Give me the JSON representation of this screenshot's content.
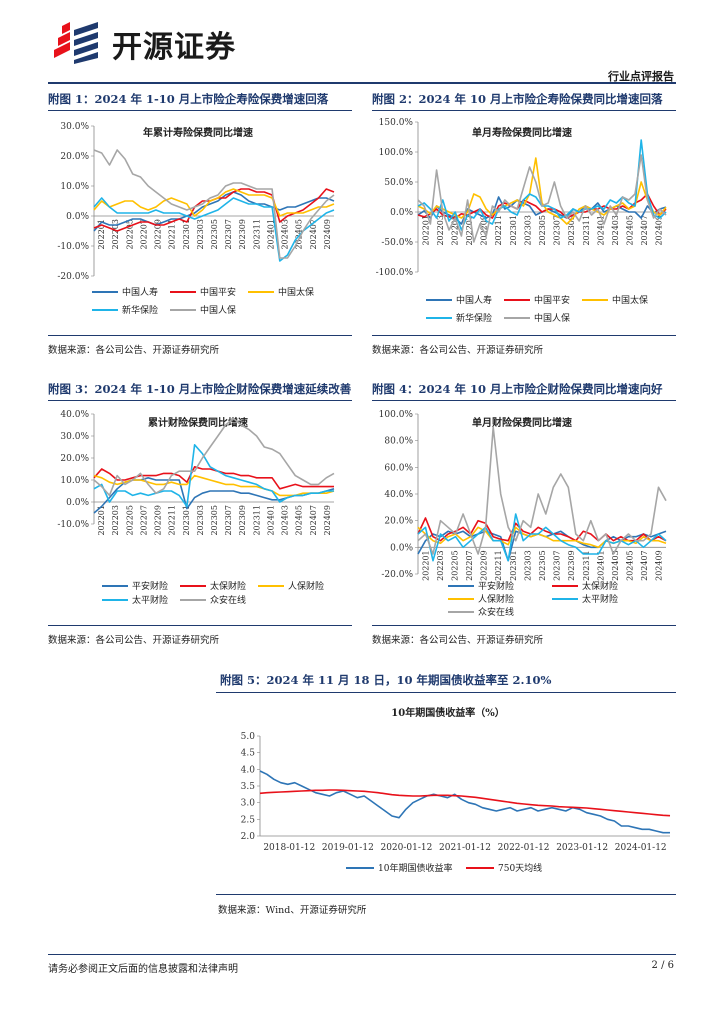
{
  "header": {
    "brand": "开源证券",
    "section": "行业点评报告"
  },
  "colors": {
    "rule": "#1f3a6e",
    "blue": "#2e75b6",
    "red": "#e8111a",
    "yellow": "#ffc000",
    "lightblue": "#1fb4e8",
    "gray": "#a6a6a6",
    "logo_red": "#e8111a",
    "logo_blue": "#1f3a6e"
  },
  "figures": [
    {
      "title": "附图 1：2024 年 1-10 月上市险企寿险保费增速回落",
      "source": "数据来源：各公司公告、开源证券研究所"
    },
    {
      "title": "附图 2：2024 年 10 月上市险企寿险保费同比增速回落",
      "source": "数据来源：各公司公告、开源证券研究所"
    },
    {
      "title": "附图 3：2024 年 1-10 月上市险企财险保费增速延续改善",
      "source": "数据来源：各公司公告、开源证券研究所"
    },
    {
      "title": "附图 4：2024 年 10 月上市险企财险保费同比增速向好",
      "source": "数据来源：各公司公告、开源证券研究所"
    },
    {
      "title": "附图 5：2024 年 11 月 18 日，10 年期国债收益率至 2.10%",
      "source": "数据来源：Wind、开源证券研究所"
    }
  ],
  "footer": {
    "disclaimer": "请务必参阅正文后面的信息披露和法律声明",
    "page": "2 / 6"
  },
  "chart_data": [
    {
      "type": "line",
      "title": "年累计寿险保费同比增速",
      "yticks": [
        "30.0%",
        "20.0%",
        "10.0%",
        "0.0%",
        "-10.0%",
        "-20.0%"
      ],
      "ylim": [
        -20,
        30
      ],
      "xticks": [
        "202201",
        "202203",
        "202205",
        "202207",
        "202209",
        "202211",
        "202301",
        "202303",
        "202305",
        "202307",
        "202309",
        "202311",
        "202401",
        "202403",
        "202405",
        "202407",
        "202409"
      ],
      "legend": [
        "中国人寿",
        "中国平安",
        "中国太保",
        "新华保险",
        "中国人保"
      ],
      "series": [
        {
          "name": "中国人寿",
          "color": "blue",
          "values": [
            -5,
            -2,
            -3,
            -3,
            -2,
            -1,
            -1,
            -2,
            -3,
            -2,
            -1,
            -1,
            0,
            1,
            3,
            4,
            5,
            7,
            8,
            7,
            5,
            4,
            4,
            3,
            2,
            3,
            3,
            4,
            5,
            6,
            6,
            5
          ]
        },
        {
          "name": "中国平安",
          "color": "red",
          "values": [
            -4,
            -3,
            -4,
            -5,
            -4,
            -3,
            -2,
            -2,
            -3,
            -3,
            -2,
            -1,
            -2,
            3,
            5,
            5,
            6,
            6,
            8,
            9,
            9,
            8,
            8,
            7,
            -2,
            0,
            1,
            2,
            4,
            6,
            9,
            8
          ]
        },
        {
          "name": "中国太保",
          "color": "yellow",
          "values": [
            2,
            5,
            3,
            4,
            5,
            5,
            3,
            2,
            3,
            5,
            6,
            5,
            4,
            0,
            2,
            5,
            6,
            8,
            9,
            8,
            7,
            7,
            7,
            6,
            0,
            1,
            1,
            1,
            2,
            3,
            3,
            4
          ]
        },
        {
          "name": "新华保险",
          "color": "lightblue",
          "values": [
            3,
            6,
            3,
            1,
            1,
            1,
            1,
            1,
            2,
            1,
            1,
            1,
            0,
            -1,
            0,
            1,
            2,
            4,
            6,
            5,
            4,
            4,
            3,
            3,
            -15,
            -13,
            -8,
            -5,
            -3,
            -1,
            1,
            2
          ]
        },
        {
          "name": "中国人保",
          "color": "gray",
          "values": [
            22,
            21,
            17,
            22,
            19,
            14,
            13,
            10,
            8,
            6,
            4,
            3,
            2,
            3,
            4,
            6,
            7,
            10,
            11,
            11,
            10,
            9,
            9,
            9,
            -14,
            -14,
            -10,
            -5,
            -1,
            2,
            5,
            7
          ]
        }
      ]
    },
    {
      "type": "line",
      "title": "单月寿险保费同比增速",
      "yticks": [
        "150.0%",
        "100.0%",
        "50.0%",
        "0.0%",
        "-50.0%",
        "-100.0%"
      ],
      "ylim": [
        -100,
        150
      ],
      "xticks": [
        "202201",
        "202203",
        "202205",
        "202207",
        "202209",
        "202211",
        "202301",
        "202303",
        "202305",
        "202307",
        "202309",
        "202311",
        "202401",
        "202403",
        "202405",
        "202407",
        "202409"
      ],
      "legend": [
        "中国人寿",
        "中国平安",
        "中国太保",
        "新华保险",
        "中国人保"
      ],
      "series": [
        {
          "name": "中国人寿",
          "color": "blue",
          "values": [
            -5,
            2,
            -10,
            10,
            0,
            -5,
            -10,
            -20,
            5,
            0,
            -5,
            -10,
            -5,
            25,
            5,
            10,
            20,
            15,
            10,
            -5,
            0,
            5,
            0,
            -5,
            -10,
            5,
            0,
            10,
            5,
            15,
            0,
            5,
            10,
            5,
            0,
            0,
            -10,
            10,
            -2,
            5,
            8
          ]
        },
        {
          "name": "中国平安",
          "color": "red",
          "values": [
            -5,
            -8,
            -3,
            5,
            -5,
            -8,
            -10,
            -3,
            -5,
            0,
            5,
            -5,
            -10,
            10,
            15,
            10,
            5,
            20,
            15,
            10,
            0,
            5,
            5,
            0,
            -10,
            -5,
            0,
            0,
            5,
            5,
            10,
            5,
            5,
            10,
            5,
            15,
            20,
            30,
            10,
            -5,
            5
          ]
        },
        {
          "name": "中国太保",
          "color": "yellow",
          "values": [
            10,
            5,
            -3,
            10,
            5,
            0,
            -5,
            -10,
            0,
            30,
            25,
            5,
            -5,
            5,
            10,
            15,
            20,
            10,
            30,
            90,
            15,
            0,
            -5,
            -10,
            -20,
            -10,
            5,
            10,
            5,
            0,
            -5,
            5,
            10,
            15,
            5,
            10,
            50,
            20,
            0,
            -5,
            8
          ]
        },
        {
          "name": "新华保险",
          "color": "lightblue",
          "values": [
            10,
            15,
            5,
            -10,
            20,
            -15,
            0,
            -30,
            -5,
            -10,
            5,
            -15,
            -20,
            5,
            10,
            0,
            -5,
            20,
            30,
            25,
            10,
            10,
            5,
            -10,
            -5,
            5,
            0,
            5,
            5,
            10,
            5,
            20,
            15,
            25,
            15,
            10,
            120,
            30,
            -5,
            -10,
            0
          ]
        },
        {
          "name": "中国人保",
          "color": "gray",
          "values": [
            20,
            10,
            -20,
            70,
            0,
            -30,
            -10,
            -40,
            20,
            -50,
            -20,
            -40,
            10,
            0,
            20,
            10,
            5,
            40,
            75,
            50,
            10,
            15,
            50,
            10,
            -10,
            0,
            -15,
            10,
            -5,
            5,
            -20,
            10,
            -5,
            25,
            20,
            30,
            95,
            20,
            -10,
            5,
            -5
          ]
        }
      ]
    },
    {
      "type": "line",
      "title": "累计财险保费同比增速",
      "yticks": [
        "40.0%",
        "30.0%",
        "20.0%",
        "10.0%",
        "0.0%",
        "-10.0%"
      ],
      "ylim": [
        -10,
        40
      ],
      "xticks": [
        "202201",
        "202203",
        "202205",
        "202207",
        "202209",
        "202211",
        "202301",
        "202303",
        "202305",
        "202307",
        "202309",
        "202311",
        "202401",
        "202403",
        "202405",
        "202407",
        "202409"
      ],
      "legend": [
        "平安财险",
        "太保财险",
        "人保财险",
        "太平财险",
        "众安在线"
      ],
      "series": [
        {
          "name": "平安财险",
          "color": "blue",
          "values": [
            -5,
            -2,
            2,
            6,
            9,
            10,
            10,
            11,
            10,
            10,
            10,
            10,
            -3,
            2,
            4,
            5,
            5,
            5,
            5,
            4,
            4,
            3,
            2,
            1,
            1,
            2,
            3,
            3,
            4,
            4,
            5,
            6
          ]
        },
        {
          "name": "太保财险",
          "color": "red",
          "values": [
            11,
            15,
            13,
            10,
            10,
            11,
            12,
            12,
            12,
            13,
            13,
            12,
            9,
            16,
            15,
            15,
            14,
            13,
            13,
            12,
            12,
            11,
            11,
            11,
            6,
            7,
            8,
            7,
            7,
            7,
            7,
            7
          ]
        },
        {
          "name": "人保财险",
          "color": "yellow",
          "values": [
            12,
            11,
            9,
            8,
            9,
            10,
            10,
            9,
            8,
            8,
            9,
            8,
            8,
            12,
            11,
            10,
            9,
            8,
            8,
            7,
            7,
            7,
            6,
            5,
            3,
            3,
            3,
            4,
            4,
            4,
            4,
            5
          ]
        },
        {
          "name": "太平财险",
          "color": "lightblue",
          "values": [
            6,
            8,
            0,
            5,
            5,
            3,
            4,
            3,
            4,
            5,
            5,
            3,
            -2,
            26,
            22,
            16,
            14,
            12,
            11,
            10,
            9,
            8,
            6,
            5,
            0,
            2,
            3,
            3,
            4,
            4,
            5,
            5
          ]
        },
        {
          "name": "众安在线",
          "color": "gray",
          "values": [
            10,
            7,
            3,
            12,
            8,
            10,
            13,
            8,
            4,
            6,
            12,
            14,
            14,
            14,
            20,
            25,
            30,
            35,
            38,
            35,
            33,
            30,
            25,
            24,
            22,
            17,
            12,
            10,
            8,
            8,
            11,
            13
          ]
        }
      ]
    },
    {
      "type": "line",
      "title": "单月财险保费同比增速",
      "yticks": [
        "100.0%",
        "80.0%",
        "60.0%",
        "40.0%",
        "20.0%",
        "0.0%",
        "-20.0%"
      ],
      "ylim": [
        -20,
        100
      ],
      "xticks": [
        "202201",
        "202203",
        "202205",
        "202207",
        "202209",
        "202211",
        "202301",
        "202303",
        "202305",
        "202307",
        "202309",
        "202311",
        "202401",
        "202403",
        "202405",
        "202407",
        "202409"
      ],
      "legend": [
        "平安财险",
        "太保财险",
        "人保财险",
        "太平财险",
        "众安在线"
      ],
      "series": [
        {
          "name": "平安财险",
          "color": "blue",
          "values": [
            -5,
            5,
            10,
            8,
            12,
            10,
            12,
            8,
            10,
            12,
            10,
            8,
            -10,
            12,
            10,
            8,
            10,
            8,
            10,
            12,
            8,
            5,
            2,
            0,
            0,
            5,
            8,
            5,
            8,
            8,
            10,
            8,
            10,
            12
          ]
        },
        {
          "name": "太保财险",
          "color": "red",
          "values": [
            10,
            22,
            8,
            5,
            10,
            12,
            15,
            10,
            20,
            18,
            8,
            6,
            5,
            18,
            12,
            10,
            15,
            12,
            10,
            10,
            8,
            5,
            12,
            10,
            5,
            10,
            5,
            8,
            5,
            5,
            10,
            5,
            8,
            5
          ]
        },
        {
          "name": "人保财险",
          "color": "yellow",
          "values": [
            15,
            10,
            5,
            3,
            8,
            10,
            5,
            8,
            15,
            12,
            5,
            5,
            2,
            15,
            10,
            8,
            10,
            8,
            5,
            5,
            5,
            5,
            3,
            2,
            0,
            5,
            3,
            5,
            5,
            3,
            8,
            5,
            5,
            3
          ]
        },
        {
          "name": "太平财险",
          "color": "lightblue",
          "values": [
            10,
            15,
            -10,
            10,
            5,
            8,
            0,
            5,
            10,
            15,
            5,
            5,
            -10,
            25,
            5,
            10,
            10,
            15,
            10,
            5,
            2,
            0,
            -5,
            -5,
            -5,
            5,
            3,
            5,
            2,
            5,
            0,
            5,
            10,
            5
          ]
        },
        {
          "name": "众安在线",
          "color": "gray",
          "values": [
            5,
            10,
            -5,
            20,
            15,
            10,
            25,
            10,
            -5,
            15,
            90,
            40,
            15,
            5,
            20,
            15,
            40,
            25,
            45,
            55,
            45,
            10,
            5,
            20,
            5,
            10,
            -5,
            5,
            10,
            5,
            5,
            10,
            45,
            35
          ]
        }
      ]
    },
    {
      "type": "line",
      "title": "10年期国债收益率（%）",
      "yticks": [
        "5.0",
        "4.5",
        "4.0",
        "3.5",
        "3.0",
        "2.5",
        "2.0"
      ],
      "ylim": [
        2.0,
        5.0
      ],
      "xticks": [
        "2018-01-12",
        "2019-01-12",
        "2020-01-12",
        "2021-01-12",
        "2022-01-12",
        "2023-01-12",
        "2024-01-12"
      ],
      "legend": [
        "10年期国债收益率",
        "750天均线"
      ],
      "series": [
        {
          "name": "10年期国债收益率",
          "color": "blue",
          "values": [
            3.95,
            3.85,
            3.7,
            3.6,
            3.55,
            3.6,
            3.5,
            3.4,
            3.3,
            3.25,
            3.2,
            3.3,
            3.35,
            3.25,
            3.15,
            3.2,
            3.05,
            2.9,
            2.75,
            2.6,
            2.55,
            2.8,
            3.0,
            3.1,
            3.2,
            3.25,
            3.2,
            3.15,
            3.25,
            3.1,
            3.0,
            2.95,
            2.85,
            2.8,
            2.75,
            2.8,
            2.85,
            2.75,
            2.8,
            2.85,
            2.75,
            2.8,
            2.85,
            2.8,
            2.75,
            2.85,
            2.8,
            2.7,
            2.65,
            2.6,
            2.5,
            2.45,
            2.3,
            2.3,
            2.25,
            2.2,
            2.2,
            2.15,
            2.1,
            2.1
          ]
        },
        {
          "name": "750天均线",
          "color": "red",
          "values": [
            3.28,
            3.3,
            3.31,
            3.32,
            3.33,
            3.34,
            3.35,
            3.36,
            3.37,
            3.37,
            3.38,
            3.38,
            3.37,
            3.36,
            3.35,
            3.34,
            3.32,
            3.3,
            3.27,
            3.24,
            3.22,
            3.21,
            3.2,
            3.2,
            3.21,
            3.22,
            3.22,
            3.22,
            3.21,
            3.2,
            3.18,
            3.16,
            3.13,
            3.1,
            3.07,
            3.04,
            3.01,
            2.98,
            2.96,
            2.94,
            2.92,
            2.91,
            2.9,
            2.88,
            2.87,
            2.86,
            2.85,
            2.84,
            2.82,
            2.8,
            2.78,
            2.76,
            2.74,
            2.72,
            2.7,
            2.68,
            2.66,
            2.64,
            2.62,
            2.61
          ]
        }
      ]
    }
  ]
}
